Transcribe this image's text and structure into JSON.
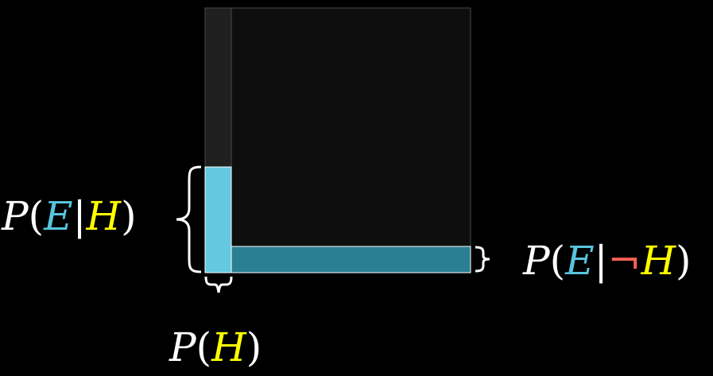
{
  "labels": {
    "e_given_h": {
      "p": "P",
      "open": "(",
      "e": "E",
      "bar": "|",
      "h": "H",
      "close": ")"
    },
    "e_given_not_h": {
      "p": "P",
      "open": "(",
      "e": "E",
      "bar": "|",
      "not": "¬",
      "h": "H",
      "close": ")"
    },
    "h": {
      "p": "P",
      "open": "(",
      "h": "H",
      "close": ")"
    }
  },
  "colors": {
    "background": "#000000",
    "square_fill": "#0f0e0f",
    "h_column_fill": "#1f1f1f",
    "e_given_h_fill": "#64c8e0",
    "e_given_not_h_fill": "#2a7f92",
    "E": "#58c4dd",
    "H": "#ffff00",
    "not": "#fc6255",
    "text": "#ffffff"
  }
}
